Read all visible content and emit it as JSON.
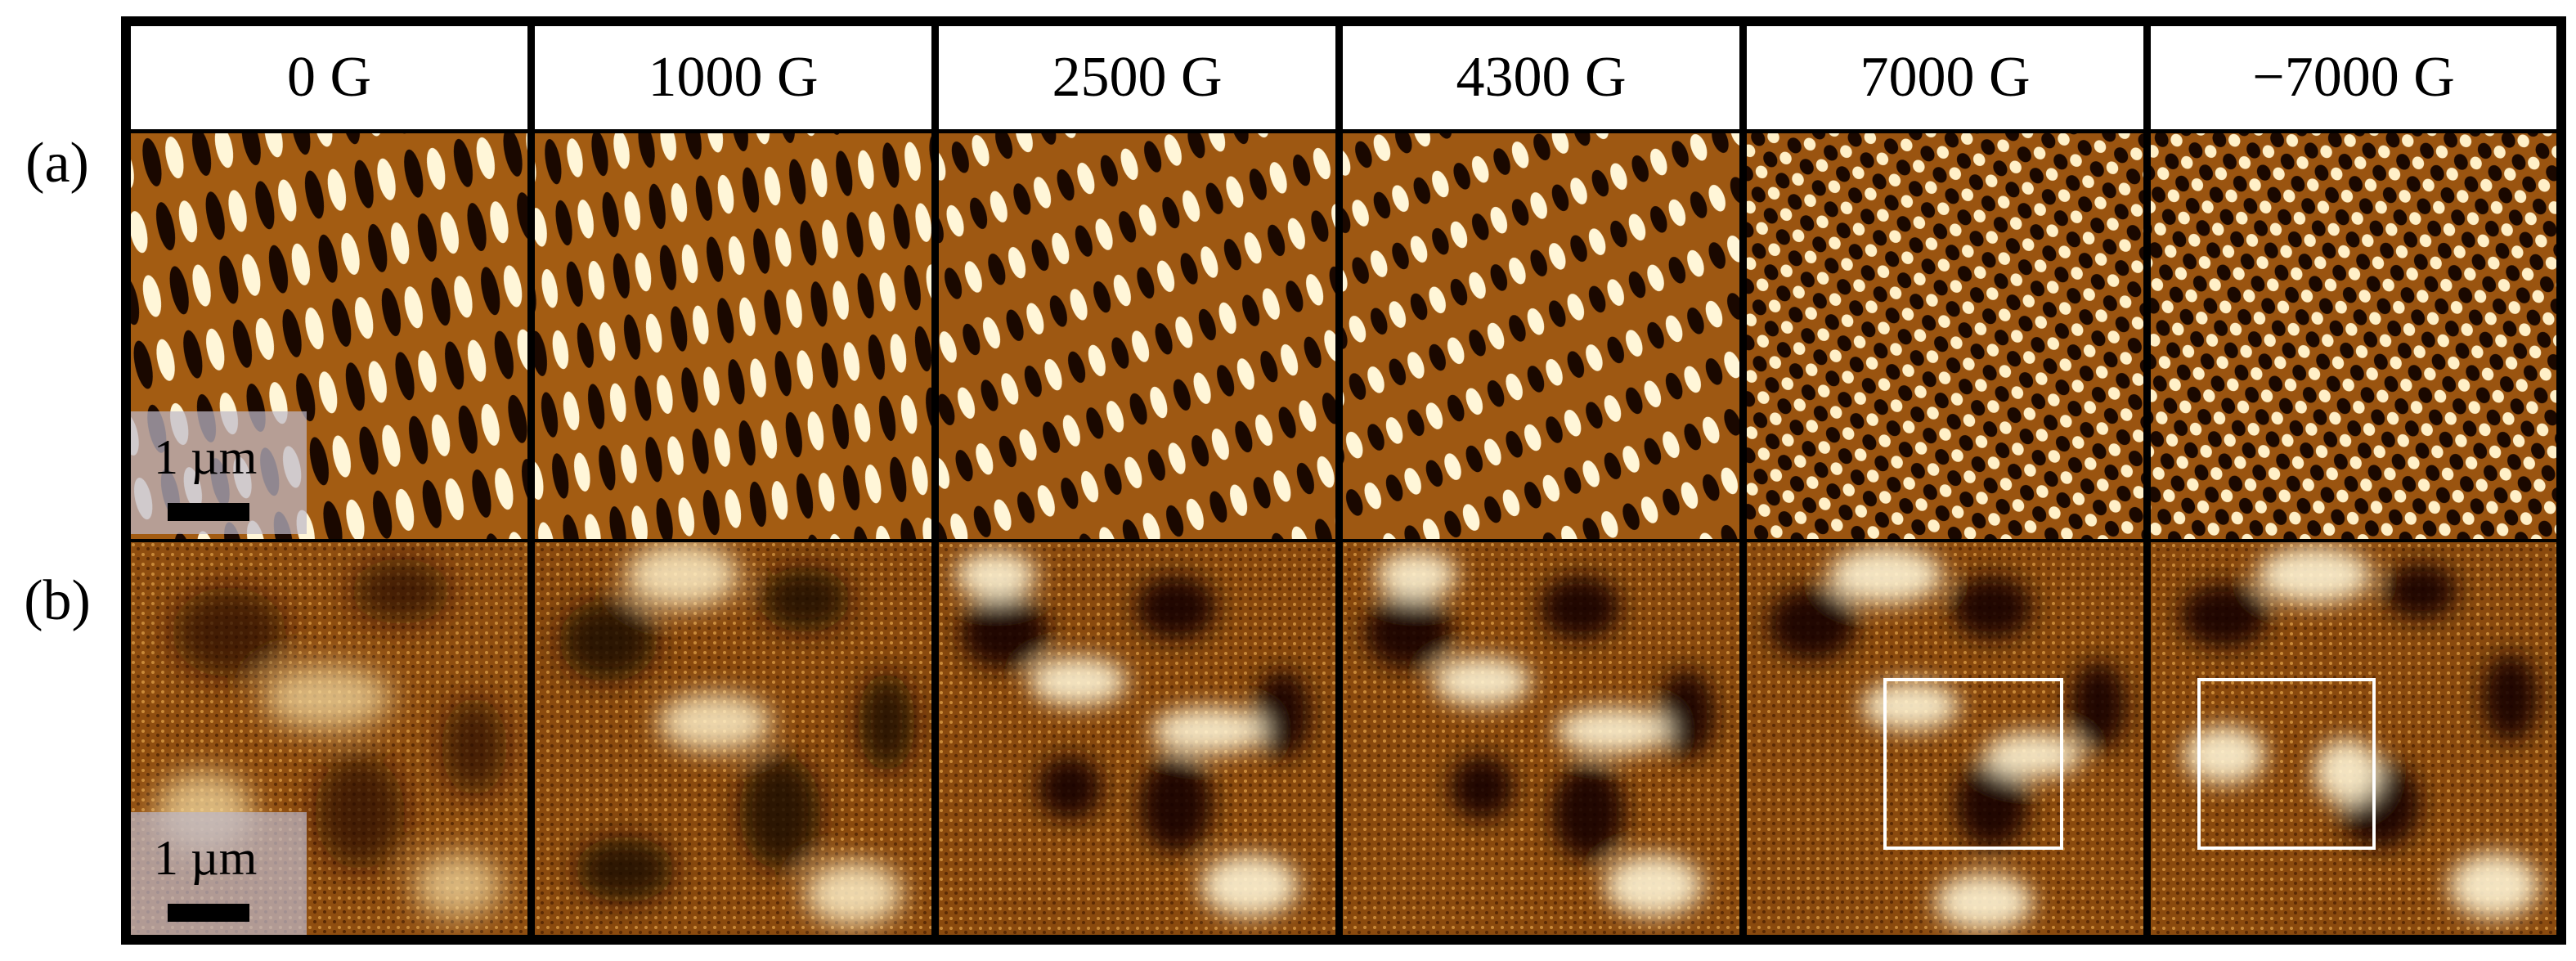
{
  "row_labels": {
    "a": "(a)",
    "b": "(b)"
  },
  "columns": [
    {
      "field": "0 G"
    },
    {
      "field": "1000 G"
    },
    {
      "field": "2500 G"
    },
    {
      "field": "4300 G"
    },
    {
      "field": "7000 G"
    },
    {
      "field": "−7000 G"
    }
  ],
  "scale_bar": {
    "label": "1 µm"
  },
  "colormap": {
    "dark": "#1a0800",
    "mid": "#9a5410",
    "bright": "#fff8e0"
  }
}
